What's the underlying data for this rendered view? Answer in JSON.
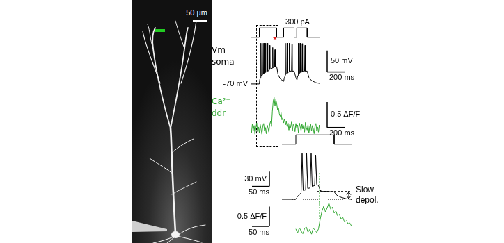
{
  "micrograph": {
    "scale_bar": "50 µm"
  },
  "chart_data": [
    {
      "type": "line",
      "color": "#000000",
      "grid": false,
      "tick_labels": false,
      "xlim": [
        0,
        800
      ],
      "ylim": [
        -50,
        350
      ],
      "x": [
        0,
        100,
        100,
        300,
        300,
        380,
        380,
        500,
        500,
        530,
        530,
        650,
        650,
        800
      ],
      "values": [
        0,
        0,
        300,
        300,
        0,
        0,
        300,
        300,
        0,
        0,
        300,
        300,
        0,
        0
      ],
      "annotations": [
        {
          "text": "300 pA",
          "x": 540,
          "y": 300
        }
      ]
    },
    {
      "type": "line",
      "color": "#000000",
      "grid": false,
      "tick_labels": false,
      "label": [
        "Vm",
        "soma"
      ],
      "xlim": [
        0,
        800
      ],
      "ylim": [
        -75,
        35
      ],
      "x": [
        0,
        100,
        105,
        115,
        118,
        121,
        130,
        134,
        137,
        148,
        152,
        155,
        168,
        172,
        175,
        190,
        194,
        197,
        215,
        219,
        222,
        250,
        254,
        257,
        275,
        280,
        283,
        300,
        315,
        340,
        380,
        385,
        395,
        399,
        402,
        415,
        419,
        422,
        440,
        444,
        447,
        470,
        475,
        478,
        500,
        520,
        530,
        535,
        545,
        549,
        552,
        565,
        569,
        572,
        590,
        594,
        597,
        620,
        625,
        628,
        650,
        670,
        700,
        750,
        800
      ],
      "values": [
        -70,
        -70,
        -60,
        -55,
        25,
        -50,
        -50,
        25,
        -48,
        -46,
        25,
        -45,
        -42,
        25,
        -43,
        -40,
        25,
        -40,
        -38,
        20,
        -36,
        -33,
        15,
        -32,
        -30,
        10,
        -30,
        -30,
        -48,
        -58,
        -64,
        -58,
        -52,
        25,
        -48,
        -46,
        25,
        -44,
        -42,
        25,
        -40,
        -40,
        22,
        -40,
        -40,
        -55,
        -60,
        -56,
        -50,
        25,
        -47,
        -45,
        25,
        -43,
        -42,
        24,
        -41,
        -40,
        20,
        -40,
        -40,
        -55,
        -62,
        -67,
        -69
      ],
      "scale_bars": [
        {
          "axis": "y",
          "value": 50,
          "label": "50 mV"
        },
        {
          "axis": "x",
          "value": 200,
          "label": "200 ms"
        }
      ],
      "annotations": [
        {
          "text": "*",
          "x": 280,
          "y": 15,
          "color": "#e02020"
        },
        {
          "text": "-70 mV",
          "y": -70
        }
      ],
      "highlight_x": [
        60,
        320
      ]
    },
    {
      "type": "line",
      "color": "#33a833",
      "grid": false,
      "tick_labels": false,
      "label": [
        "Ca²⁺",
        "ddr"
      ],
      "xlim": [
        0,
        800
      ],
      "ylim": [
        -0.3,
        0.8
      ],
      "x": [
        0,
        10,
        20,
        30,
        40,
        50,
        60,
        70,
        80,
        90,
        100,
        110,
        120,
        130,
        140,
        150,
        160,
        170,
        180,
        190,
        200,
        210,
        220,
        230,
        240,
        250,
        260,
        270,
        280,
        290,
        300,
        310,
        320,
        330,
        340,
        350,
        360,
        370,
        380,
        390,
        400,
        410,
        420,
        430,
        440,
        450,
        460,
        470,
        480,
        490,
        500,
        510,
        520,
        530,
        540,
        550,
        560,
        570,
        580,
        590,
        600,
        610,
        620,
        630,
        640,
        650,
        660,
        670,
        680,
        690,
        700,
        710,
        720,
        730,
        740,
        750,
        760,
        770,
        780,
        790,
        800
      ],
      "values": [
        0.05,
        -0.08,
        0.1,
        -0.03,
        0.07,
        -0.1,
        0.02,
        0.12,
        -0.05,
        0.04,
        -0.07,
        0.09,
        0.0,
        -0.1,
        0.06,
        0.11,
        -0.04,
        0.03,
        -0.09,
        0.08,
        0.02,
        -0.06,
        0.1,
        0.15,
        0.05,
        0.35,
        0.55,
        0.62,
        0.45,
        0.58,
        0.5,
        0.38,
        0.42,
        0.3,
        0.25,
        0.32,
        0.18,
        0.22,
        0.12,
        0.2,
        0.08,
        0.15,
        0.05,
        0.12,
        -0.02,
        0.1,
        0.03,
        0.14,
        -0.04,
        0.09,
        0.06,
        -0.05,
        0.11,
        0.02,
        0.08,
        -0.07,
        0.12,
        0.04,
        -0.03,
        0.1,
        0.0,
        0.08,
        -0.06,
        0.13,
        0.03,
        -0.02,
        0.09,
        -0.08,
        0.05,
        0.1,
        -0.04,
        0.07,
        0.01,
        -0.09,
        0.06,
        0.11,
        -0.03,
        0.04,
        -0.06,
        0.08,
        0.02
      ],
      "scale_bars": [
        {
          "axis": "y",
          "value": 0.5,
          "label": "0.5 ΔF/F"
        },
        {
          "axis": "x",
          "value": 200,
          "label": "200 ms"
        }
      ]
    },
    {
      "type": "line",
      "color": "#000000",
      "grid": false,
      "tick_labels": false,
      "xlim": [
        0,
        200
      ],
      "ylim": [
        -50,
        350
      ],
      "x": [
        0,
        40,
        40,
        150,
        150,
        200
      ],
      "values": [
        0,
        0,
        300,
        300,
        0,
        0
      ]
    },
    {
      "type": "line",
      "color": "#000000",
      "grid": false,
      "tick_labels": false,
      "xlim": [
        0,
        200
      ],
      "ylim": [
        -75,
        35
      ],
      "x": [
        0,
        40,
        45,
        55,
        58,
        61,
        68,
        71,
        74,
        81,
        84,
        87,
        94,
        97,
        100,
        105,
        110,
        115,
        130,
        150,
        158,
        170,
        185,
        200
      ],
      "values": [
        -68,
        -68,
        -62,
        -55,
        25,
        -50,
        -49,
        25,
        -46,
        -45,
        25,
        -42,
        -40,
        22,
        -38,
        -40,
        -50,
        -52,
        -52,
        -53,
        -60,
        -64,
        -67,
        -68
      ],
      "scale_bars": [
        {
          "axis": "y",
          "value": 30,
          "label": "30 mV"
        },
        {
          "axis": "x",
          "value": 50,
          "label": "50 ms"
        }
      ],
      "annotations": [
        {
          "text": "Slow depol.",
          "from": -68,
          "to": -52
        }
      ]
    },
    {
      "type": "line",
      "color": "#33a833",
      "grid": false,
      "tick_labels": false,
      "xlim": [
        0,
        200
      ],
      "ylim": [
        -0.2,
        0.85
      ],
      "x": [
        40,
        45,
        50,
        55,
        60,
        65,
        70,
        75,
        80,
        85,
        90,
        95,
        100,
        105,
        110,
        115,
        120,
        125,
        130,
        135,
        140,
        145,
        150,
        155,
        160,
        165,
        170,
        175,
        180,
        185,
        190,
        195,
        200
      ],
      "values": [
        0.05,
        -0.05,
        0.08,
        0.0,
        -0.07,
        0.06,
        0.1,
        -0.03,
        0.04,
        -0.08,
        0.07,
        0.02,
        -0.04,
        0.05,
        0.3,
        0.5,
        0.62,
        0.48,
        0.58,
        0.7,
        0.55,
        0.6,
        0.45,
        0.5,
        0.38,
        0.42,
        0.3,
        0.34,
        0.22,
        0.26,
        0.18,
        0.2,
        0.12
      ],
      "scale_bars": [
        {
          "axis": "y",
          "value": 0.5,
          "label": "0.5 ΔF/F"
        },
        {
          "axis": "x",
          "value": 50,
          "label": "50 ms"
        }
      ],
      "onset_x": 108
    }
  ]
}
